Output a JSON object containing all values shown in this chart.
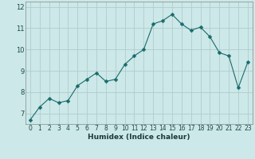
{
  "x": [
    0,
    1,
    2,
    3,
    4,
    5,
    6,
    7,
    8,
    9,
    10,
    11,
    12,
    13,
    14,
    15,
    16,
    17,
    18,
    19,
    20,
    21,
    22,
    23
  ],
  "y": [
    6.7,
    7.3,
    7.7,
    7.5,
    7.6,
    8.3,
    8.6,
    8.9,
    8.5,
    8.6,
    9.3,
    9.7,
    10.0,
    11.2,
    11.35,
    11.65,
    11.2,
    10.9,
    11.05,
    10.6,
    9.85,
    9.7,
    8.2,
    9.4
  ],
  "xlabel": "Humidex (Indice chaleur)",
  "bg_color": "#cce8e8",
  "grid_color": "#b0cccc",
  "line_color": "#1a6b6b",
  "marker": "D",
  "marker_size": 2.5,
  "xlim": [
    -0.5,
    23.5
  ],
  "ylim": [
    6.5,
    12.25
  ],
  "yticks": [
    7,
    8,
    9,
    10,
    11,
    12
  ],
  "xticks": [
    0,
    1,
    2,
    3,
    4,
    5,
    6,
    7,
    8,
    9,
    10,
    11,
    12,
    13,
    14,
    15,
    16,
    17,
    18,
    19,
    20,
    21,
    22,
    23
  ],
  "xlabel_fontsize": 6.5,
  "tick_fontsize": 5.5,
  "ytick_fontsize": 6.0
}
